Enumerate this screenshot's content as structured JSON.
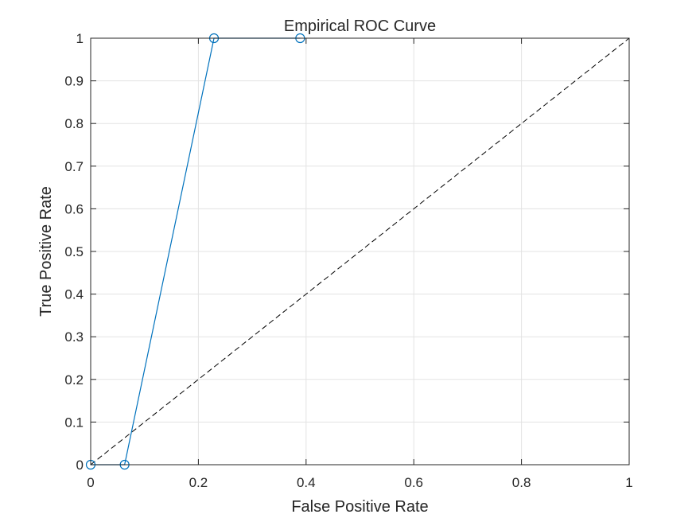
{
  "chart_data": {
    "type": "line",
    "title": "Empirical ROC Curve",
    "xlabel": "False Positive Rate",
    "ylabel": "True Positive Rate",
    "xlim": [
      0,
      1
    ],
    "ylim": [
      0,
      1
    ],
    "x_ticks": [
      0,
      0.2,
      0.4,
      0.6,
      0.8,
      1
    ],
    "x_tick_labels": [
      "0",
      "0.2",
      "0.4",
      "0.6",
      "0.8",
      "1"
    ],
    "y_ticks": [
      0,
      0.1,
      0.2,
      0.3,
      0.4,
      0.5,
      0.6,
      0.7,
      0.8,
      0.9,
      1
    ],
    "y_tick_labels": [
      "0",
      "0.1",
      "0.2",
      "0.3",
      "0.4",
      "0.5",
      "0.6",
      "0.7",
      "0.8",
      "0.9",
      "1"
    ],
    "grid": true,
    "series": [
      {
        "x": [
          0,
          0.063,
          0.229,
          0.389
        ],
        "y": [
          0,
          0,
          1,
          1
        ],
        "color": "#0072bd",
        "marker": "circle"
      }
    ],
    "reference_line": {
      "x": [
        0,
        1
      ],
      "y": [
        0,
        1
      ],
      "color": "#000000",
      "style": "dashed"
    }
  }
}
